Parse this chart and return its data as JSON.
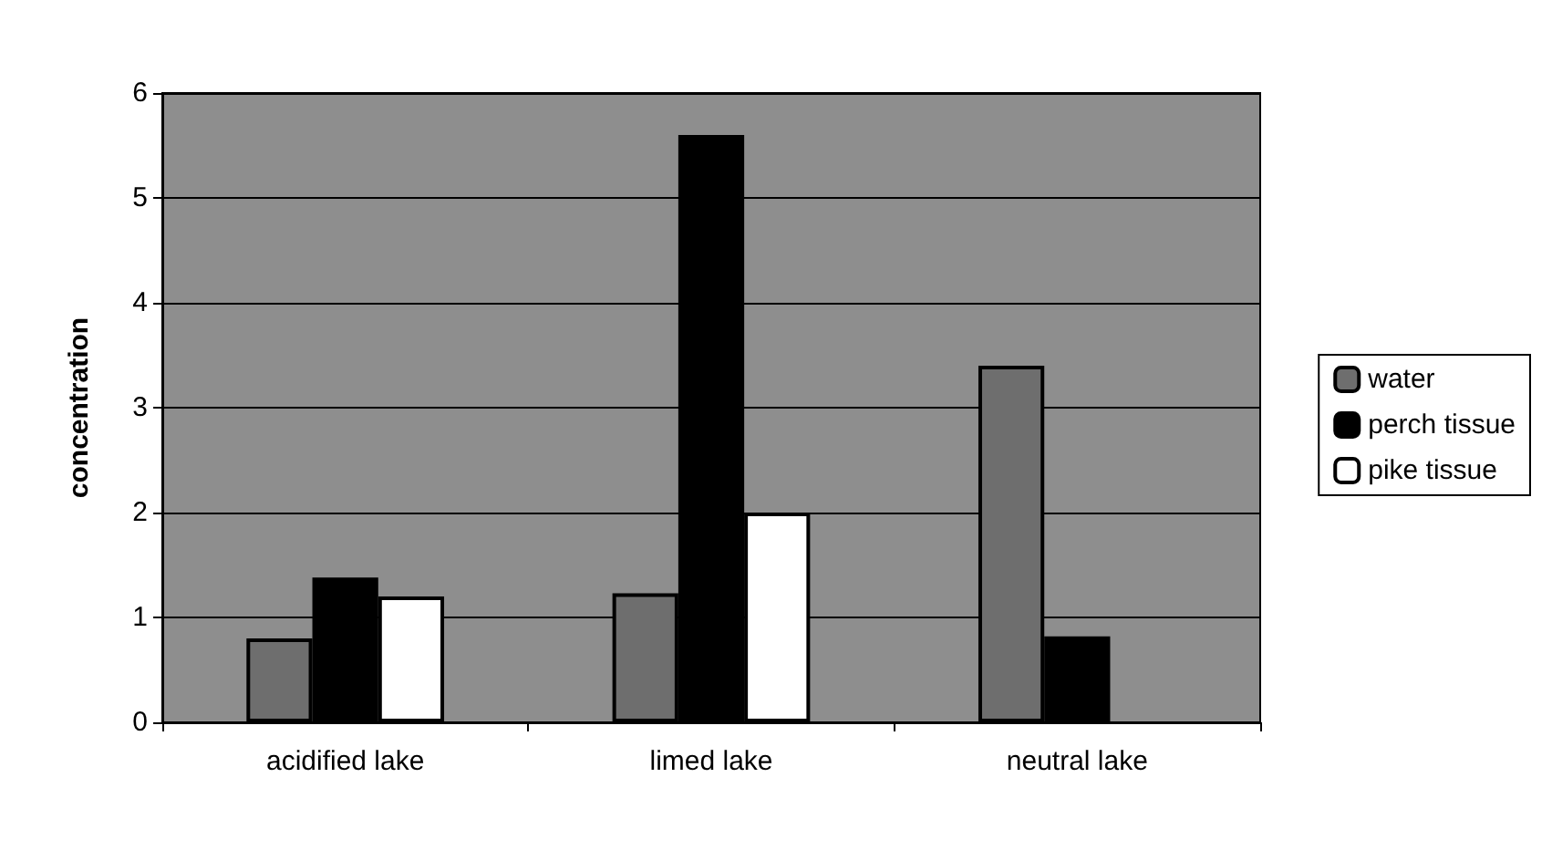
{
  "chart_data": {
    "type": "bar",
    "ylabel": "concentration",
    "categories": [
      "acidified lake",
      "limed lake",
      "neutral lake"
    ],
    "series": [
      {
        "name": "water",
        "color": "#6e6e6e",
        "values": [
          0.8,
          1.23,
          3.4
        ]
      },
      {
        "name": "perch tissue",
        "color": "#000000",
        "values": [
          1.38,
          5.6,
          0.82
        ]
      },
      {
        "name": "pike tissue",
        "color": "#ffffff",
        "values": [
          1.2,
          2.0,
          null
        ]
      }
    ],
    "ylim": [
      0,
      6
    ],
    "yticks": [
      0,
      1,
      2,
      3,
      4,
      5,
      6
    ],
    "grid": "y",
    "legend": "right"
  }
}
